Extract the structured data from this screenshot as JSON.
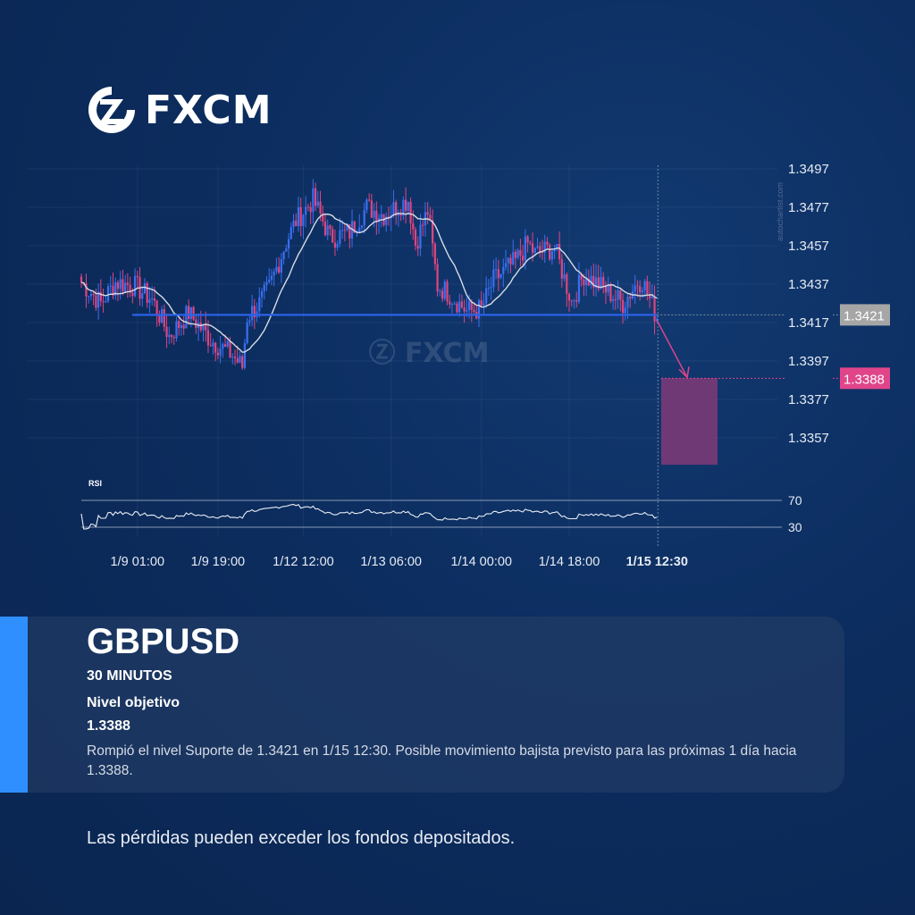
{
  "brand": {
    "name": "FXCM",
    "watermark": "FXCM",
    "credit": "autochartist.com"
  },
  "colors": {
    "bull": "#3a6ff0",
    "bear": "#e0457f",
    "support": "#2a62e8",
    "target": "#e0458a",
    "target_box": "#7a3a78",
    "accent": "#2f8fff",
    "sma": "#d8dce4"
  },
  "chart_data": {
    "type": "candlestick",
    "symbol": "GBPUSD",
    "y_ticks": [
      "1.3497",
      "1.3477",
      "1.3457",
      "1.3437",
      "1.3417",
      "1.3397",
      "1.3377",
      "1.3357"
    ],
    "ylim": [
      1.3343,
      1.35
    ],
    "x_ticks": [
      "1/9 01:00",
      "1/9 19:00",
      "1/12 12:00",
      "1/13 06:00",
      "1/14 00:00",
      "1/14 18:00",
      "1/15 12:30"
    ],
    "close_anchors": [
      [
        0,
        1.3438
      ],
      [
        8,
        1.3427
      ],
      [
        14,
        1.3438
      ],
      [
        22,
        1.3436
      ],
      [
        29,
        1.3429
      ],
      [
        36,
        1.341
      ],
      [
        44,
        1.3422
      ],
      [
        53,
        1.3408
      ],
      [
        62,
        1.34
      ],
      [
        66,
        1.3394
      ],
      [
        68,
        1.342
      ],
      [
        73,
        1.3427
      ],
      [
        77,
        1.3435
      ],
      [
        84,
        1.3459
      ],
      [
        88,
        1.347
      ],
      [
        95,
        1.3481
      ],
      [
        99,
        1.347
      ],
      [
        102,
        1.3461
      ],
      [
        110,
        1.3464
      ],
      [
        117,
        1.3477
      ],
      [
        124,
        1.3473
      ],
      [
        134,
        1.3481
      ],
      [
        137,
        1.3458
      ],
      [
        142,
        1.3475
      ],
      [
        146,
        1.3436
      ],
      [
        150,
        1.3433
      ],
      [
        158,
        1.3423
      ],
      [
        164,
        1.3424
      ],
      [
        169,
        1.3439
      ],
      [
        178,
        1.3449
      ],
      [
        183,
        1.3458
      ],
      [
        186,
        1.3453
      ],
      [
        194,
        1.3456
      ],
      [
        201,
        1.3428
      ],
      [
        206,
        1.3442
      ],
      [
        214,
        1.3435
      ],
      [
        222,
        1.3427
      ],
      [
        228,
        1.3438
      ],
      [
        230,
        1.3439
      ],
      [
        236,
        1.3419
      ]
    ],
    "support_level": 1.3421,
    "support_label": "1.3421",
    "target_level": 1.3388,
    "target_label": "1.3388",
    "target_zone_low": 1.3343,
    "indicator": {
      "name": "RSI",
      "levels": [
        "70",
        "30"
      ]
    },
    "overlay": "moving average"
  },
  "panel": {
    "symbol": "GBPUSD",
    "timeframe": "30 MINUTOS",
    "target_label": "Nivel objetivo",
    "target_value": "1.3388",
    "description": "Rompió el nivel Suporte de 1.3421 en 1/15 12:30. Posible movimiento bajista previsto para las próximas 1 día hacia 1.3388."
  },
  "disclaimer": "Las pérdidas pueden exceder los fondos depositados."
}
